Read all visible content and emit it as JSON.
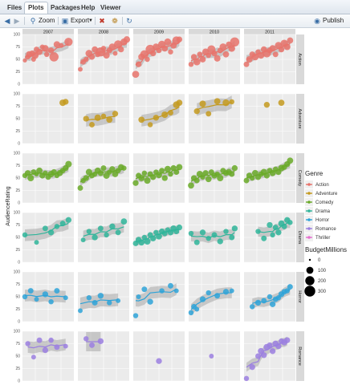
{
  "tabs": [
    {
      "label": "Files",
      "active": false
    },
    {
      "label": "Plots",
      "active": true
    },
    {
      "label": "Packages",
      "active": false
    },
    {
      "label": "Help",
      "active": false
    },
    {
      "label": "Viewer",
      "active": false
    }
  ],
  "toolbar": {
    "zoom_label": "Zoom",
    "export_label": "Export",
    "publish_label": "Publish",
    "icons": [
      "back-arrow-icon",
      "forward-arrow-icon",
      "zoom-icon",
      "export-icon",
      "remove-plot-icon",
      "broom-icon",
      "refresh-icon",
      "publish-icon"
    ]
  },
  "chart_data": {
    "type": "scatter",
    "ylabel": "AudienceRating",
    "years": [
      "2007",
      "2008",
      "2009",
      "2010",
      "2011"
    ],
    "genres": [
      "Action",
      "Adventure",
      "Comedy",
      "Drama",
      "Horror",
      "Romance"
    ],
    "y_ticks": [
      0,
      25,
      50,
      75,
      100
    ],
    "ylim": [
      0,
      100
    ],
    "legend_genre": {
      "title": "Genre",
      "entries": [
        {
          "name": "Action",
          "color": "#e8736b"
        },
        {
          "name": "Adventure",
          "color": "#c49a1f"
        },
        {
          "name": "Comedy",
          "color": "#6aaa28"
        },
        {
          "name": "Drama",
          "color": "#2fb59a"
        },
        {
          "name": "Horror",
          "color": "#2ea3d8"
        },
        {
          "name": "Romance",
          "color": "#9b7fe0"
        },
        {
          "name": "Thriller",
          "color": "#e56fcf"
        }
      ]
    },
    "legend_size": {
      "title": "BudgetMillions",
      "entries": [
        {
          "label": "0",
          "value": 0
        },
        {
          "label": "100",
          "value": 100
        },
        {
          "label": "200",
          "value": 200
        },
        {
          "label": "300",
          "value": 300
        }
      ]
    },
    "panels": {
      "Action": {
        "2007": {
          "x": [
            0,
            2,
            3,
            5,
            6,
            7,
            8,
            10,
            12,
            14,
            15,
            18,
            20,
            22,
            25,
            30
          ],
          "y": [
            48,
            55,
            60,
            62,
            50,
            58,
            70,
            65,
            75,
            72,
            60,
            68,
            55,
            80,
            78,
            85
          ],
          "s": [
            20,
            40,
            80,
            60,
            30,
            100,
            50,
            70,
            30,
            90,
            40,
            60,
            200,
            80,
            30,
            150
          ]
        },
        "2008": {
          "x": [
            0,
            2,
            4,
            6,
            8,
            10,
            12,
            14,
            16,
            18,
            20,
            22,
            24,
            26,
            28,
            30,
            32
          ],
          "y": [
            30,
            45,
            50,
            62,
            55,
            70,
            60,
            65,
            72,
            58,
            68,
            75,
            62,
            80,
            70,
            85,
            90
          ],
          "s": [
            30,
            50,
            40,
            100,
            60,
            70,
            50,
            200,
            40,
            80,
            60,
            90,
            30,
            150,
            60,
            100,
            80
          ]
        },
        "2009": {
          "x": [
            0,
            2,
            4,
            6,
            8,
            10,
            12,
            14,
            16,
            18,
            20,
            22,
            24,
            26,
            28,
            30
          ],
          "y": [
            20,
            40,
            55,
            60,
            50,
            70,
            62,
            75,
            68,
            80,
            72,
            85,
            65,
            78,
            88,
            90
          ],
          "s": [
            100,
            60,
            80,
            150,
            40,
            200,
            60,
            90,
            50,
            120,
            70,
            100,
            40,
            80,
            150,
            60
          ]
        },
        "2010": {
          "x": [
            0,
            2,
            4,
            6,
            8,
            10,
            12,
            14,
            16,
            18,
            20,
            22,
            24,
            26,
            28,
            30
          ],
          "y": [
            40,
            55,
            45,
            60,
            50,
            65,
            58,
            70,
            62,
            52,
            68,
            75,
            60,
            80,
            72,
            85
          ],
          "s": [
            40,
            60,
            100,
            50,
            70,
            90,
            40,
            150,
            60,
            80,
            50,
            100,
            70,
            60,
            90,
            200
          ]
        },
        "2011": {
          "x": [
            0,
            2,
            4,
            6,
            8,
            10,
            12,
            14,
            16,
            18,
            20,
            22,
            24,
            26,
            28,
            30
          ],
          "y": [
            40,
            50,
            60,
            55,
            65,
            58,
            70,
            62,
            68,
            72,
            60,
            78,
            70,
            82,
            75,
            88
          ],
          "s": [
            50,
            80,
            60,
            100,
            40,
            90,
            70,
            150,
            60,
            80,
            50,
            100,
            60,
            120,
            80,
            70
          ]
        }
      },
      "Adventure": {
        "2007": {
          "x": [
            26,
            28
          ],
          "y": [
            82,
            84
          ],
          "s": [
            80,
            60
          ]
        },
        "2008": {
          "x": [
            4,
            8,
            12,
            16,
            20,
            24
          ],
          "y": [
            50,
            38,
            52,
            55,
            48,
            60
          ],
          "s": [
            60,
            50,
            80,
            40,
            70,
            60
          ]
        },
        "2009": {
          "x": [
            4,
            10,
            14,
            20,
            24,
            28,
            30
          ],
          "y": [
            48,
            38,
            52,
            58,
            62,
            78,
            82
          ],
          "s": [
            70,
            40,
            60,
            80,
            50,
            90,
            70
          ]
        },
        "2010": {
          "x": [
            4,
            8,
            12,
            18,
            24,
            28
          ],
          "y": [
            65,
            80,
            60,
            85,
            82,
            84
          ],
          "s": [
            60,
            80,
            50,
            70,
            90,
            40
          ]
        },
        "2011": {
          "x": [
            14,
            24
          ],
          "y": [
            78,
            82
          ],
          "s": [
            60,
            70
          ]
        }
      },
      "Comedy": {
        "2007": {
          "x": [
            0,
            2,
            4,
            6,
            8,
            10,
            12,
            14,
            16,
            18,
            20,
            22,
            24,
            26,
            28,
            30
          ],
          "y": [
            55,
            60,
            50,
            62,
            58,
            65,
            55,
            60,
            52,
            58,
            62,
            55,
            60,
            65,
            70,
            78
          ],
          "s": [
            40,
            60,
            80,
            50,
            30,
            70,
            60,
            40,
            50,
            80,
            60,
            40,
            70,
            50,
            60,
            80
          ]
        },
        "2008": {
          "x": [
            0,
            2,
            4,
            6,
            8,
            10,
            12,
            14,
            16,
            18,
            20,
            22,
            24,
            26,
            28,
            30
          ],
          "y": [
            30,
            45,
            50,
            62,
            55,
            58,
            65,
            60,
            70,
            55,
            62,
            68,
            58,
            65,
            72,
            70
          ],
          "s": [
            50,
            40,
            60,
            80,
            50,
            40,
            70,
            60,
            50,
            80,
            40,
            60,
            70,
            50,
            60,
            40
          ]
        },
        "2009": {
          "x": [
            0,
            2,
            4,
            6,
            8,
            10,
            12,
            14,
            16,
            18,
            20,
            22,
            24,
            26,
            28,
            30
          ],
          "y": [
            40,
            55,
            50,
            60,
            45,
            58,
            52,
            62,
            56,
            65,
            50,
            68,
            58,
            70,
            62,
            72
          ],
          "s": [
            60,
            50,
            70,
            40,
            80,
            50,
            60,
            40,
            70,
            50,
            60,
            80,
            40,
            60,
            50,
            70
          ]
        },
        "2010": {
          "x": [
            0,
            2,
            4,
            6,
            8,
            10,
            12,
            14,
            16,
            18,
            20,
            22,
            24,
            26,
            28,
            30
          ],
          "y": [
            35,
            50,
            45,
            58,
            52,
            60,
            48,
            62,
            55,
            58,
            50,
            65,
            60,
            62,
            58,
            70
          ],
          "s": [
            70,
            60,
            50,
            80,
            40,
            60,
            70,
            50,
            60,
            40,
            80,
            50,
            60,
            70,
            50,
            60
          ]
        },
        "2011": {
          "x": [
            0,
            2,
            4,
            6,
            8,
            10,
            12,
            14,
            16,
            18,
            20,
            22,
            24,
            26,
            28,
            30
          ],
          "y": [
            45,
            55,
            50,
            60,
            52,
            58,
            62,
            55,
            65,
            60,
            68,
            62,
            70,
            72,
            78,
            85
          ],
          "s": [
            50,
            60,
            40,
            70,
            60,
            50,
            80,
            60,
            50,
            70,
            40,
            60,
            80,
            50,
            60,
            70
          ]
        }
      },
      "Drama": {
        "2007": {
          "x": [
            0,
            8,
            14,
            18,
            22,
            26,
            30
          ],
          "y": [
            55,
            40,
            68,
            60,
            72,
            78,
            85
          ],
          "s": [
            40,
            30,
            50,
            60,
            40,
            50,
            60
          ]
        },
        "2008": {
          "x": [
            2,
            6,
            10,
            14,
            18,
            22,
            26,
            30
          ],
          "y": [
            45,
            62,
            50,
            68,
            55,
            72,
            60,
            82
          ],
          "s": [
            30,
            40,
            60,
            50,
            40,
            60,
            50,
            70
          ]
        },
        "2009": {
          "x": [
            0,
            2,
            4,
            6,
            8,
            10,
            12,
            14,
            16,
            18,
            20,
            22,
            24,
            26,
            28,
            30
          ],
          "y": [
            38,
            45,
            40,
            50,
            42,
            55,
            48,
            60,
            52,
            62,
            58,
            65,
            60,
            68,
            62,
            70
          ],
          "s": [
            50,
            60,
            70,
            40,
            80,
            50,
            60,
            40,
            70,
            60,
            50,
            40,
            60,
            70,
            50,
            60
          ]
        },
        "2010": {
          "x": [
            0,
            4,
            8,
            12,
            16,
            20,
            24,
            28,
            30
          ],
          "y": [
            58,
            40,
            60,
            48,
            55,
            42,
            62,
            50,
            68
          ],
          "s": [
            40,
            50,
            60,
            40,
            50,
            60,
            40,
            50,
            60
          ]
        },
        "2011": {
          "x": [
            8,
            12,
            16,
            18,
            20,
            22,
            24,
            26,
            28,
            30
          ],
          "y": [
            62,
            48,
            75,
            55,
            70,
            60,
            78,
            72,
            85,
            80
          ],
          "s": [
            40,
            50,
            60,
            40,
            50,
            60,
            70,
            50,
            60,
            40
          ]
        }
      },
      "Horror": {
        "2007": {
          "x": [
            0,
            4,
            8,
            14,
            18,
            22,
            28
          ],
          "y": [
            50,
            62,
            45,
            55,
            40,
            62,
            48
          ],
          "s": [
            40,
            50,
            30,
            60,
            40,
            50,
            30
          ]
        },
        "2008": {
          "x": [
            0,
            6,
            10,
            14,
            20,
            26
          ],
          "y": [
            22,
            48,
            38,
            52,
            38,
            42
          ],
          "s": [
            30,
            40,
            50,
            60,
            40,
            30
          ]
        },
        "2009": {
          "x": [
            0,
            2,
            6,
            10,
            18,
            24,
            28
          ],
          "y": [
            12,
            50,
            65,
            40,
            62,
            72,
            62
          ],
          "s": [
            40,
            30,
            50,
            60,
            40,
            50,
            30
          ]
        },
        "2010": {
          "x": [
            0,
            2,
            4,
            8,
            12,
            18,
            24,
            28
          ],
          "y": [
            18,
            30,
            25,
            45,
            58,
            52,
            60,
            62
          ],
          "s": [
            40,
            50,
            30,
            60,
            40,
            50,
            60,
            30
          ]
        },
        "2011": {
          "x": [
            4,
            8,
            12,
            16,
            18,
            20,
            22,
            24,
            26,
            28,
            30
          ],
          "y": [
            30,
            38,
            42,
            50,
            35,
            45,
            48,
            55,
            60,
            62,
            70
          ],
          "s": [
            40,
            60,
            50,
            40,
            60,
            50,
            40,
            60,
            50,
            40,
            50
          ]
        }
      },
      "Romance": {
        "2007": {
          "x": [
            2,
            6,
            10,
            14,
            18,
            22,
            28
          ],
          "y": [
            75,
            48,
            82,
            62,
            82,
            68,
            70
          ],
          "s": [
            40,
            30,
            50,
            60,
            40,
            50,
            30
          ]
        },
        "2008": {
          "x": [
            4,
            8,
            14
          ],
          "y": [
            85,
            72,
            80
          ],
          "s": [
            40,
            50,
            60
          ]
        },
        "2009": {
          "x": [
            16
          ],
          "y": [
            40
          ],
          "s": [
            60
          ]
        },
        "2010": {
          "x": [
            14
          ],
          "y": [
            50
          ],
          "s": [
            30
          ]
        },
        "2011": {
          "x": [
            0,
            4,
            8,
            10,
            12,
            14,
            16,
            18,
            20,
            22,
            24,
            26,
            28
          ],
          "y": [
            5,
            28,
            50,
            60,
            52,
            68,
            72,
            60,
            75,
            70,
            80,
            78,
            82
          ],
          "s": [
            40,
            60,
            50,
            70,
            60,
            80,
            50,
            60,
            70,
            60,
            50,
            80,
            60
          ]
        }
      }
    }
  }
}
